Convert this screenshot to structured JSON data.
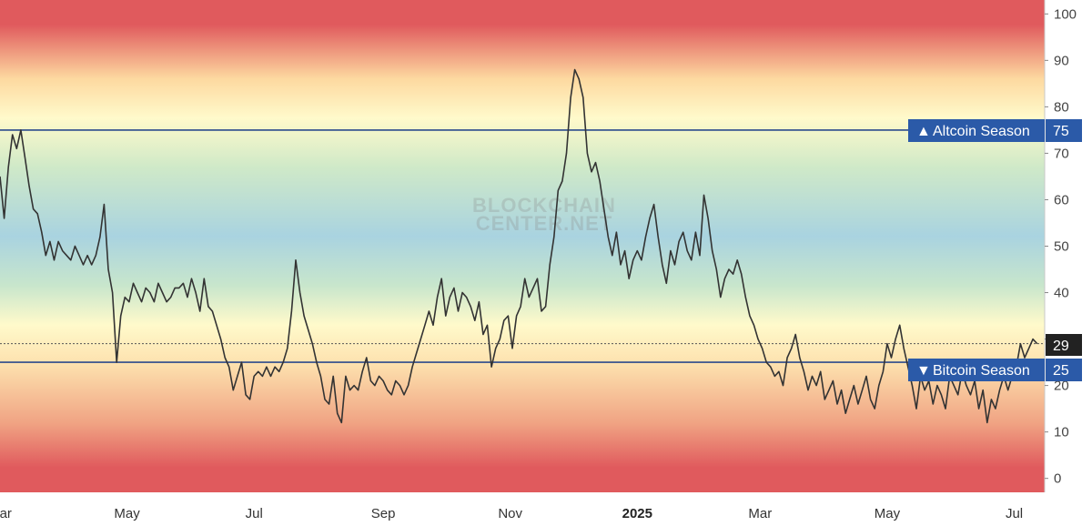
{
  "chart_data": {
    "type": "line",
    "title": "",
    "xlabel": "",
    "ylabel": "",
    "ylim": [
      -3,
      103
    ],
    "yticks": [
      0,
      10,
      20,
      30,
      40,
      50,
      60,
      70,
      80,
      90,
      100
    ],
    "xticks": [
      {
        "label": "Mar",
        "date": "2024-03-01",
        "bold": false
      },
      {
        "label": "May",
        "date": "2024-05-01",
        "bold": false
      },
      {
        "label": "Jul",
        "date": "2024-07-01",
        "bold": false
      },
      {
        "label": "Sep",
        "date": "2024-09-01",
        "bold": false
      },
      {
        "label": "Nov",
        "date": "2024-11-01",
        "bold": false
      },
      {
        "label": "2025",
        "date": "2025-01-01",
        "bold": true
      },
      {
        "label": "Mar",
        "date": "2025-03-01",
        "bold": false
      },
      {
        "label": "May",
        "date": "2025-05-01",
        "bold": false
      },
      {
        "label": "Jul",
        "date": "2025-07-01",
        "bold": false
      }
    ],
    "xlim": [
      "2024-03-01",
      "2025-07-13"
    ],
    "background": "rainbow gradient by value: red at 0 and 100, yellow near 25 and 75, blue-green near 50",
    "grid": false,
    "series": [
      {
        "color": "#333333",
        "points": [
          [
            "2024-03-01",
            65
          ],
          [
            "2024-03-03",
            56
          ],
          [
            "2024-03-05",
            67
          ],
          [
            "2024-03-07",
            74
          ],
          [
            "2024-03-09",
            71
          ],
          [
            "2024-03-11",
            75
          ],
          [
            "2024-03-13",
            69
          ],
          [
            "2024-03-15",
            63
          ],
          [
            "2024-03-17",
            58
          ],
          [
            "2024-03-19",
            57
          ],
          [
            "2024-03-21",
            53
          ],
          [
            "2024-03-23",
            48
          ],
          [
            "2024-03-25",
            51
          ],
          [
            "2024-03-27",
            47
          ],
          [
            "2024-03-29",
            51
          ],
          [
            "2024-03-31",
            49
          ],
          [
            "2024-04-02",
            48
          ],
          [
            "2024-04-04",
            47
          ],
          [
            "2024-04-06",
            50
          ],
          [
            "2024-04-08",
            48
          ],
          [
            "2024-04-10",
            46
          ],
          [
            "2024-04-12",
            48
          ],
          [
            "2024-04-14",
            46
          ],
          [
            "2024-04-16",
            48
          ],
          [
            "2024-04-18",
            52
          ],
          [
            "2024-04-20",
            59
          ],
          [
            "2024-04-22",
            45
          ],
          [
            "2024-04-24",
            40
          ],
          [
            "2024-04-26",
            25
          ],
          [
            "2024-04-28",
            35
          ],
          [
            "2024-04-30",
            39
          ],
          [
            "2024-05-02",
            38
          ],
          [
            "2024-05-04",
            42
          ],
          [
            "2024-05-06",
            40
          ],
          [
            "2024-05-08",
            38
          ],
          [
            "2024-05-10",
            41
          ],
          [
            "2024-05-12",
            40
          ],
          [
            "2024-05-14",
            38
          ],
          [
            "2024-05-16",
            42
          ],
          [
            "2024-05-18",
            40
          ],
          [
            "2024-05-20",
            38
          ],
          [
            "2024-05-22",
            39
          ],
          [
            "2024-05-24",
            41
          ],
          [
            "2024-05-26",
            41
          ],
          [
            "2024-05-28",
            42
          ],
          [
            "2024-05-30",
            39
          ],
          [
            "2024-06-01",
            43
          ],
          [
            "2024-06-03",
            40
          ],
          [
            "2024-06-05",
            36
          ],
          [
            "2024-06-07",
            43
          ],
          [
            "2024-06-09",
            37
          ],
          [
            "2024-06-11",
            36
          ],
          [
            "2024-06-13",
            33
          ],
          [
            "2024-06-15",
            30
          ],
          [
            "2024-06-17",
            26
          ],
          [
            "2024-06-19",
            24
          ],
          [
            "2024-06-21",
            19
          ],
          [
            "2024-06-23",
            22
          ],
          [
            "2024-06-25",
            25
          ],
          [
            "2024-06-27",
            18
          ],
          [
            "2024-06-29",
            17
          ],
          [
            "2024-07-01",
            22
          ],
          [
            "2024-07-03",
            23
          ],
          [
            "2024-07-05",
            22
          ],
          [
            "2024-07-07",
            24
          ],
          [
            "2024-07-09",
            22
          ],
          [
            "2024-07-11",
            24
          ],
          [
            "2024-07-13",
            23
          ],
          [
            "2024-07-15",
            25
          ],
          [
            "2024-07-17",
            28
          ],
          [
            "2024-07-19",
            36
          ],
          [
            "2024-07-21",
            47
          ],
          [
            "2024-07-23",
            40
          ],
          [
            "2024-07-25",
            35
          ],
          [
            "2024-07-27",
            32
          ],
          [
            "2024-07-29",
            29
          ],
          [
            "2024-07-31",
            25
          ],
          [
            "2024-08-02",
            22
          ],
          [
            "2024-08-04",
            17
          ],
          [
            "2024-08-06",
            16
          ],
          [
            "2024-08-08",
            22
          ],
          [
            "2024-08-10",
            14
          ],
          [
            "2024-08-12",
            12
          ],
          [
            "2024-08-14",
            22
          ],
          [
            "2024-08-16",
            19
          ],
          [
            "2024-08-18",
            20
          ],
          [
            "2024-08-20",
            19
          ],
          [
            "2024-08-22",
            23
          ],
          [
            "2024-08-24",
            26
          ],
          [
            "2024-08-26",
            21
          ],
          [
            "2024-08-28",
            20
          ],
          [
            "2024-08-30",
            22
          ],
          [
            "2024-09-01",
            21
          ],
          [
            "2024-09-03",
            19
          ],
          [
            "2024-09-05",
            18
          ],
          [
            "2024-09-07",
            21
          ],
          [
            "2024-09-09",
            20
          ],
          [
            "2024-09-11",
            18
          ],
          [
            "2024-09-13",
            20
          ],
          [
            "2024-09-15",
            24
          ],
          [
            "2024-09-17",
            27
          ],
          [
            "2024-09-19",
            30
          ],
          [
            "2024-09-21",
            33
          ],
          [
            "2024-09-23",
            36
          ],
          [
            "2024-09-25",
            33
          ],
          [
            "2024-09-27",
            39
          ],
          [
            "2024-09-29",
            43
          ],
          [
            "2024-10-01",
            35
          ],
          [
            "2024-10-03",
            39
          ],
          [
            "2024-10-05",
            41
          ],
          [
            "2024-10-07",
            36
          ],
          [
            "2024-10-09",
            40
          ],
          [
            "2024-10-11",
            39
          ],
          [
            "2024-10-13",
            37
          ],
          [
            "2024-10-15",
            34
          ],
          [
            "2024-10-17",
            38
          ],
          [
            "2024-10-19",
            31
          ],
          [
            "2024-10-21",
            33
          ],
          [
            "2024-10-23",
            24
          ],
          [
            "2024-10-25",
            28
          ],
          [
            "2024-10-27",
            30
          ],
          [
            "2024-10-29",
            34
          ],
          [
            "2024-10-31",
            35
          ],
          [
            "2024-11-02",
            28
          ],
          [
            "2024-11-04",
            35
          ],
          [
            "2024-11-06",
            37
          ],
          [
            "2024-11-08",
            43
          ],
          [
            "2024-11-10",
            39
          ],
          [
            "2024-11-12",
            41
          ],
          [
            "2024-11-14",
            43
          ],
          [
            "2024-11-16",
            36
          ],
          [
            "2024-11-18",
            37
          ],
          [
            "2024-11-20",
            46
          ],
          [
            "2024-11-22",
            52
          ],
          [
            "2024-11-24",
            62
          ],
          [
            "2024-11-26",
            64
          ],
          [
            "2024-11-28",
            70
          ],
          [
            "2024-11-30",
            82
          ],
          [
            "2024-12-02",
            88
          ],
          [
            "2024-12-04",
            86
          ],
          [
            "2024-12-06",
            82
          ],
          [
            "2024-12-08",
            70
          ],
          [
            "2024-12-10",
            66
          ],
          [
            "2024-12-12",
            68
          ],
          [
            "2024-12-14",
            64
          ],
          [
            "2024-12-16",
            58
          ],
          [
            "2024-12-18",
            52
          ],
          [
            "2024-12-20",
            48
          ],
          [
            "2024-12-22",
            53
          ],
          [
            "2024-12-24",
            46
          ],
          [
            "2024-12-26",
            49
          ],
          [
            "2024-12-28",
            43
          ],
          [
            "2024-12-30",
            47
          ],
          [
            "2025-01-01",
            49
          ],
          [
            "2025-01-03",
            47
          ],
          [
            "2025-01-05",
            52
          ],
          [
            "2025-01-07",
            56
          ],
          [
            "2025-01-09",
            59
          ],
          [
            "2025-01-11",
            52
          ],
          [
            "2025-01-13",
            46
          ],
          [
            "2025-01-15",
            42
          ],
          [
            "2025-01-17",
            49
          ],
          [
            "2025-01-19",
            46
          ],
          [
            "2025-01-21",
            51
          ],
          [
            "2025-01-23",
            53
          ],
          [
            "2025-01-25",
            49
          ],
          [
            "2025-01-27",
            47
          ],
          [
            "2025-01-29",
            53
          ],
          [
            "2025-01-31",
            48
          ],
          [
            "2025-02-02",
            61
          ],
          [
            "2025-02-04",
            56
          ],
          [
            "2025-02-06",
            49
          ],
          [
            "2025-02-08",
            45
          ],
          [
            "2025-02-10",
            39
          ],
          [
            "2025-02-12",
            43
          ],
          [
            "2025-02-14",
            45
          ],
          [
            "2025-02-16",
            44
          ],
          [
            "2025-02-18",
            47
          ],
          [
            "2025-02-20",
            44
          ],
          [
            "2025-02-22",
            39
          ],
          [
            "2025-02-24",
            35
          ],
          [
            "2025-02-26",
            33
          ],
          [
            "2025-02-28",
            30
          ],
          [
            "2025-03-02",
            28
          ],
          [
            "2025-03-04",
            25
          ],
          [
            "2025-03-06",
            24
          ],
          [
            "2025-03-08",
            22
          ],
          [
            "2025-03-10",
            23
          ],
          [
            "2025-03-12",
            20
          ],
          [
            "2025-03-14",
            26
          ],
          [
            "2025-03-16",
            28
          ],
          [
            "2025-03-18",
            31
          ],
          [
            "2025-03-20",
            26
          ],
          [
            "2025-03-22",
            23
          ],
          [
            "2025-03-24",
            19
          ],
          [
            "2025-03-26",
            22
          ],
          [
            "2025-03-28",
            20
          ],
          [
            "2025-03-30",
            23
          ],
          [
            "2025-04-01",
            17
          ],
          [
            "2025-04-03",
            19
          ],
          [
            "2025-04-05",
            21
          ],
          [
            "2025-04-07",
            16
          ],
          [
            "2025-04-09",
            19
          ],
          [
            "2025-04-11",
            14
          ],
          [
            "2025-04-13",
            17
          ],
          [
            "2025-04-15",
            20
          ],
          [
            "2025-04-17",
            16
          ],
          [
            "2025-04-19",
            19
          ],
          [
            "2025-04-21",
            22
          ],
          [
            "2025-04-23",
            17
          ],
          [
            "2025-04-25",
            15
          ],
          [
            "2025-04-27",
            20
          ],
          [
            "2025-04-29",
            23
          ],
          [
            "2025-05-01",
            29
          ],
          [
            "2025-05-03",
            26
          ],
          [
            "2025-05-05",
            30
          ],
          [
            "2025-05-07",
            33
          ],
          [
            "2025-05-09",
            28
          ],
          [
            "2025-05-11",
            24
          ],
          [
            "2025-05-13",
            20
          ],
          [
            "2025-05-15",
            15
          ],
          [
            "2025-05-17",
            22
          ],
          [
            "2025-05-19",
            19
          ],
          [
            "2025-05-21",
            21
          ],
          [
            "2025-05-23",
            16
          ],
          [
            "2025-05-25",
            20
          ],
          [
            "2025-05-27",
            18
          ],
          [
            "2025-05-29",
            15
          ],
          [
            "2025-05-31",
            22
          ],
          [
            "2025-06-02",
            20
          ],
          [
            "2025-06-04",
            18
          ],
          [
            "2025-06-06",
            23
          ],
          [
            "2025-06-08",
            20
          ],
          [
            "2025-06-10",
            18
          ],
          [
            "2025-06-12",
            21
          ],
          [
            "2025-06-14",
            15
          ],
          [
            "2025-06-16",
            19
          ],
          [
            "2025-06-18",
            12
          ],
          [
            "2025-06-20",
            17
          ],
          [
            "2025-06-22",
            15
          ],
          [
            "2025-06-24",
            19
          ],
          [
            "2025-06-26",
            22
          ],
          [
            "2025-06-28",
            19
          ],
          [
            "2025-06-30",
            22
          ],
          [
            "2025-07-02",
            24
          ],
          [
            "2025-07-04",
            29
          ],
          [
            "2025-07-06",
            26
          ],
          [
            "2025-07-08",
            28
          ],
          [
            "2025-07-10",
            30
          ],
          [
            "2025-07-12",
            29
          ]
        ]
      }
    ],
    "reference_lines": [
      {
        "value": 75,
        "label": "Altcoin Season",
        "direction": "up",
        "style": "solid",
        "color": "#2b4a8c"
      },
      {
        "value": 25,
        "label": "Bitcoin Season",
        "direction": "down",
        "style": "solid",
        "color": "#2b4a8c"
      },
      {
        "value": 29,
        "label": "",
        "style": "dotted",
        "color": "#555555"
      }
    ],
    "current_value_badge": {
      "value": 29,
      "color": "#222222"
    },
    "reference_badge_color": "#2b5aa8",
    "watermark": [
      "BLOCKCHAIN",
      "CENTER.NET"
    ]
  }
}
